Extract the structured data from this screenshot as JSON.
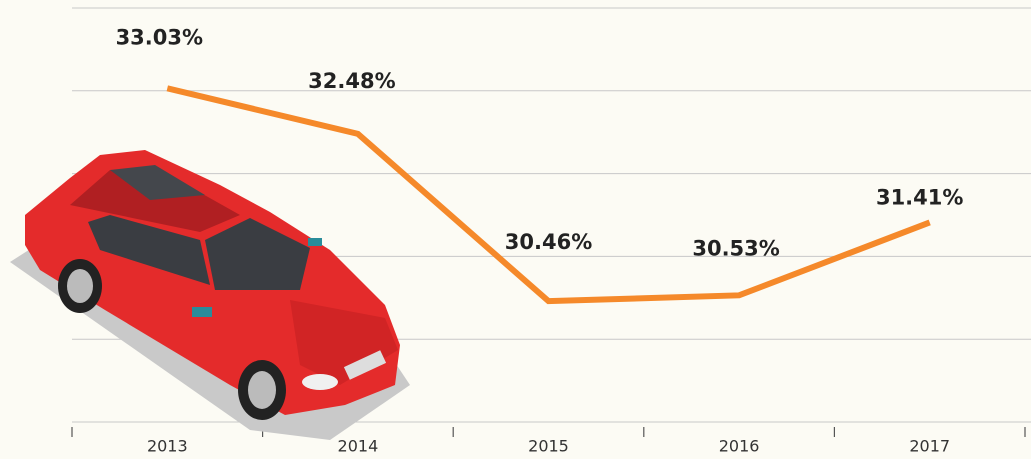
{
  "chart_data": {
    "type": "line",
    "categories": [
      "2013",
      "2014",
      "2015",
      "2016",
      "2017"
    ],
    "series": [
      {
        "color": "#f5892a",
        "values": [
          33.03,
          32.48,
          30.46,
          30.53,
          31.41
        ],
        "value_labels": [
          "33.03%",
          "32.48%",
          "30.46%",
          "30.53%",
          "31.41%"
        ]
      }
    ],
    "ylim": [
      29,
      34
    ],
    "yticks": [
      29,
      30,
      31,
      32,
      33,
      34
    ],
    "grid": true
  }
}
